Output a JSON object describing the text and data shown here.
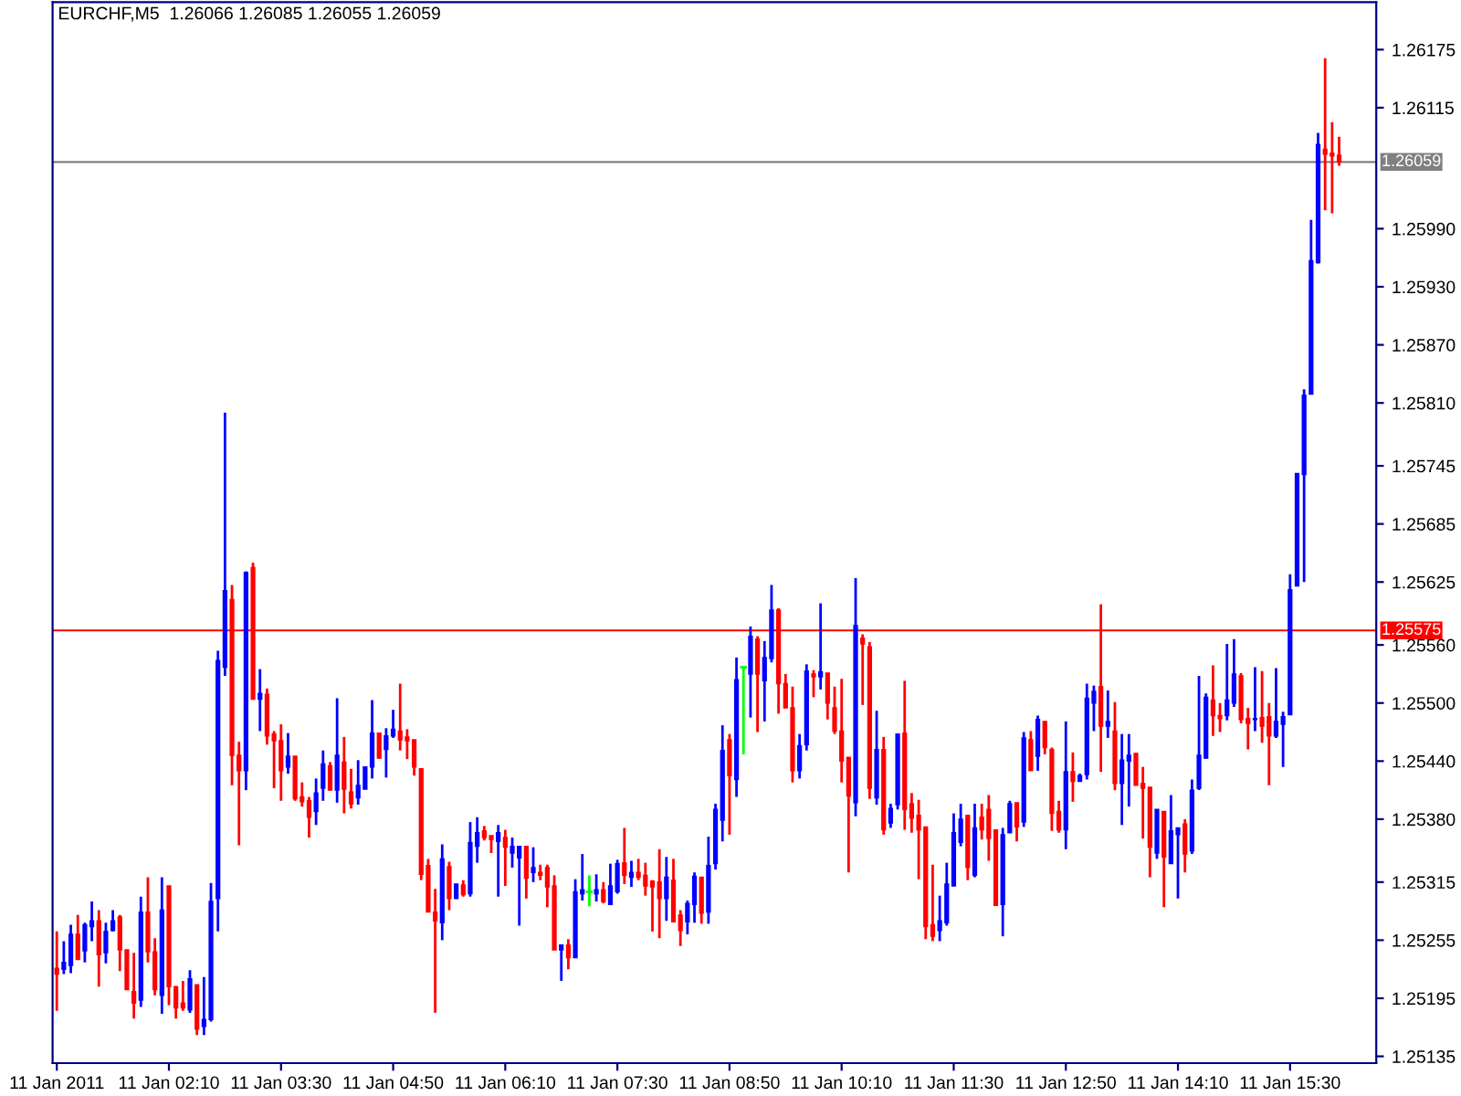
{
  "chart_data": {
    "type": "candlestick",
    "title": "EURCHF,M5  1.26066 1.26085 1.26055 1.26059",
    "categories": [
      "11 Jan 2011",
      null,
      null,
      null,
      null,
      null,
      null,
      null,
      null,
      null,
      null,
      null,
      null,
      null,
      null,
      null,
      "11 Jan 02:10",
      null,
      null,
      null,
      null,
      null,
      null,
      null,
      null,
      null,
      null,
      null,
      null,
      null,
      null,
      null,
      "11 Jan 03:30",
      null,
      null,
      null,
      null,
      null,
      null,
      null,
      null,
      null,
      null,
      null,
      null,
      null,
      null,
      null,
      "11 Jan 04:50",
      null,
      null,
      null,
      null,
      null,
      null,
      null,
      null,
      null,
      null,
      null,
      null,
      null,
      null,
      null,
      "11 Jan 06:10",
      null,
      null,
      null,
      null,
      null,
      null,
      null,
      null,
      null,
      null,
      null,
      null,
      null,
      null,
      null,
      "11 Jan 07:30",
      null,
      null,
      null,
      null,
      null,
      null,
      null,
      null,
      null,
      null,
      null,
      null,
      null,
      null,
      null,
      "11 Jan 08:50",
      null,
      null,
      null,
      null,
      null,
      null,
      null,
      null,
      null,
      null,
      null,
      null,
      null,
      null,
      null,
      "11 Jan 10:10",
      null,
      null,
      null,
      null,
      null,
      null,
      null,
      null,
      null,
      null,
      null,
      null,
      null,
      null,
      null,
      "11 Jan 11:30",
      null,
      null,
      null,
      null,
      null,
      null,
      null,
      null,
      null,
      null,
      null,
      null,
      null,
      null,
      null,
      "11 Jan 12:50",
      null,
      null,
      null,
      null,
      null,
      null,
      null,
      null,
      null,
      null,
      null,
      null,
      null,
      null,
      null,
      "11 Jan 14:10",
      null,
      null,
      null,
      null,
      null,
      null,
      null,
      null,
      null,
      null,
      null,
      null,
      null,
      null,
      null,
      "11 Jan 15:30",
      null,
      null,
      null,
      null,
      null,
      null,
      null
    ],
    "ohlc": [
      [
        1.25226,
        1.25264,
        1.25182,
        1.2522
      ],
      [
        1.25225,
        1.25254,
        1.2522,
        1.25232
      ],
      [
        1.25229,
        1.25271,
        1.25221,
        1.25261
      ],
      [
        1.25261,
        1.25281,
        1.25235,
        1.25235
      ],
      [
        1.25244,
        1.25273,
        1.25232,
        1.25271
      ],
      [
        1.25269,
        1.25295,
        1.25254,
        1.25275
      ],
      [
        1.25275,
        1.25286,
        1.25207,
        1.2524
      ],
      [
        1.25242,
        1.25273,
        1.25231,
        1.25264
      ],
      [
        1.25265,
        1.25286,
        1.25264,
        1.25275
      ],
      [
        1.25279,
        1.25281,
        1.25223,
        1.25245
      ],
      [
        1.25245,
        1.25245,
        1.25204,
        1.25204
      ],
      [
        1.25202,
        1.25242,
        1.25174,
        1.2519
      ],
      [
        1.25193,
        1.253,
        1.25186,
        1.25284
      ],
      [
        1.25284,
        1.2532,
        1.25232,
        1.25243
      ],
      [
        1.25243,
        1.25257,
        1.25198,
        1.25204
      ],
      [
        1.25198,
        1.2532,
        1.25179,
        1.25286
      ],
      [
        1.25311,
        1.25311,
        1.25188,
        1.25207
      ],
      [
        1.25207,
        1.25207,
        1.25174,
        1.25185
      ],
      [
        1.2519,
        1.25213,
        1.25182,
        1.25185
      ],
      [
        1.25183,
        1.25224,
        1.2518,
        1.25215
      ],
      [
        1.25209,
        1.25209,
        1.25157,
        1.25163
      ],
      [
        1.25166,
        1.25217,
        1.25157,
        1.25173
      ],
      [
        1.25173,
        1.25314,
        1.25171,
        1.25295
      ],
      [
        1.25298,
        1.25554,
        1.25264,
        1.25544
      ],
      [
        1.25537,
        1.258,
        1.25528,
        1.25616
      ],
      [
        1.25607,
        1.25622,
        1.25415,
        1.25446
      ],
      [
        1.25446,
        1.2546,
        1.25353,
        1.2543
      ],
      [
        1.2543,
        1.25636,
        1.2541,
        1.25635
      ],
      [
        1.2564,
        1.25645,
        1.25504,
        1.25504
      ],
      [
        1.25504,
        1.25535,
        1.25471,
        1.2551
      ],
      [
        1.25509,
        1.25515,
        1.25457,
        1.25466
      ],
      [
        1.25468,
        1.25471,
        1.25412,
        1.25461
      ],
      [
        1.25461,
        1.25478,
        1.25399,
        1.2543
      ],
      [
        1.25434,
        1.25469,
        1.25427,
        1.25445
      ],
      [
        1.25445,
        1.25445,
        1.25399,
        1.25401
      ],
      [
        1.25403,
        1.25418,
        1.25393,
        1.25398
      ],
      [
        1.25399,
        1.25403,
        1.25361,
        1.25382
      ],
      [
        1.25388,
        1.25422,
        1.25374,
        1.25407
      ],
      [
        1.25412,
        1.25451,
        1.25399,
        1.25437
      ],
      [
        1.25435,
        1.25439,
        1.2541,
        1.2541
      ],
      [
        1.2541,
        1.25505,
        1.25397,
        1.25446
      ],
      [
        1.25439,
        1.25465,
        1.25386,
        1.25411
      ],
      [
        1.25408,
        1.25432,
        1.25391,
        1.25396
      ],
      [
        1.25402,
        1.25441,
        1.25395,
        1.25415
      ],
      [
        1.25411,
        1.25434,
        1.25411,
        1.25434
      ],
      [
        1.25434,
        1.25503,
        1.25422,
        1.25469
      ],
      [
        1.25469,
        1.25469,
        1.25443,
        1.25443
      ],
      [
        1.25452,
        1.25474,
        1.25423,
        1.25466
      ],
      [
        1.25466,
        1.25493,
        1.25464,
        1.25473
      ],
      [
        1.25471,
        1.2552,
        1.25451,
        1.25462
      ],
      [
        1.25465,
        1.25473,
        1.25442,
        1.25461
      ],
      [
        1.25462,
        1.25462,
        1.25425,
        1.25434
      ],
      [
        1.25432,
        1.25432,
        1.25317,
        1.25323
      ],
      [
        1.25332,
        1.25339,
        1.25284,
        1.25284
      ],
      [
        1.25284,
        1.25308,
        1.2518,
        1.25275
      ],
      [
        1.25273,
        1.25354,
        1.25255,
        1.25339
      ],
      [
        1.25331,
        1.25336,
        1.25286,
        1.25298
      ],
      [
        1.25298,
        1.25313,
        1.25298,
        1.25313
      ],
      [
        1.25312,
        1.25317,
        1.253,
        1.25302
      ],
      [
        1.25303,
        1.25377,
        1.253,
        1.25356
      ],
      [
        1.25352,
        1.25382,
        1.25335,
        1.25366
      ],
      [
        1.25368,
        1.25373,
        1.25358,
        1.25361
      ],
      [
        1.25363,
        1.25363,
        1.25345,
        1.25359
      ],
      [
        1.25357,
        1.25374,
        1.253,
        1.25366
      ],
      [
        1.25361,
        1.25369,
        1.25311,
        1.25351
      ],
      [
        1.25345,
        1.25361,
        1.2533,
        1.25352
      ],
      [
        1.2534,
        1.25352,
        1.2527,
        1.25352
      ],
      [
        1.25352,
        1.25352,
        1.25298,
        1.25319
      ],
      [
        1.25325,
        1.25351,
        1.25315,
        1.2533
      ],
      [
        1.25325,
        1.25333,
        1.25317,
        1.25322
      ],
      [
        1.2533,
        1.25333,
        1.25289,
        1.2531
      ],
      [
        1.25311,
        1.25322,
        1.25245,
        1.25245
      ],
      [
        1.25245,
        1.2525,
        1.25213,
        1.2525
      ],
      [
        1.2525,
        1.25256,
        1.25225,
        1.25237
      ],
      [
        1.25237,
        1.25318,
        1.25237,
        1.25305
      ],
      [
        1.25303,
        1.25344,
        1.25296,
        1.25307
      ],
      [
        1.25305,
        1.25322,
        1.2529,
        1.25305
      ],
      [
        1.25303,
        1.25323,
        1.25295,
        1.25307
      ],
      [
        1.25307,
        1.25315,
        1.25293,
        1.25295
      ],
      [
        1.25292,
        1.25334,
        1.25292,
        1.25311
      ],
      [
        1.25305,
        1.25338,
        1.25303,
        1.25334
      ],
      [
        1.25335,
        1.25371,
        1.25313,
        1.25322
      ],
      [
        1.2532,
        1.25337,
        1.2531,
        1.25325
      ],
      [
        1.25325,
        1.25339,
        1.25317,
        1.2532
      ],
      [
        1.25322,
        1.25335,
        1.25301,
        1.25311
      ],
      [
        1.25316,
        1.25317,
        1.25264,
        1.2531
      ],
      [
        1.25315,
        1.25349,
        1.25257,
        1.25298
      ],
      [
        1.25298,
        1.25341,
        1.25275,
        1.2532
      ],
      [
        1.25317,
        1.25339,
        1.25274,
        1.25274
      ],
      [
        1.25281,
        1.25286,
        1.25249,
        1.25265
      ],
      [
        1.25274,
        1.25296,
        1.25261,
        1.25293
      ],
      [
        1.25292,
        1.25325,
        1.25273,
        1.25321
      ],
      [
        1.2532,
        1.2532,
        1.25272,
        1.25283
      ],
      [
        1.25284,
        1.25362,
        1.25272,
        1.25332
      ],
      [
        1.25334,
        1.25396,
        1.25328,
        1.2539
      ],
      [
        1.25379,
        1.25477,
        1.25357,
        1.25451
      ],
      [
        1.25462,
        1.25468,
        1.25364,
        1.25425
      ],
      [
        1.25421,
        1.25547,
        1.25403,
        1.25524
      ],
      [
        1.25537,
        1.25537,
        1.25447,
        1.25537
      ],
      [
        1.2553,
        1.25579,
        1.25485,
        1.25569
      ],
      [
        1.25566,
        1.25569,
        1.2547,
        1.2553
      ],
      [
        1.25523,
        1.25564,
        1.25481,
        1.25547
      ],
      [
        1.25546,
        1.25622,
        1.25542,
        1.25596
      ],
      [
        1.25596,
        1.25598,
        1.25489,
        1.2552
      ],
      [
        1.2552,
        1.2553,
        1.25495,
        1.25495
      ],
      [
        1.25495,
        1.25517,
        1.25418,
        1.2543
      ],
      [
        1.2543,
        1.25468,
        1.25422,
        1.25456
      ],
      [
        1.25457,
        1.2554,
        1.25451,
        1.25533
      ],
      [
        1.2553,
        1.25534,
        1.25506,
        1.25527
      ],
      [
        1.25527,
        1.25603,
        1.25514,
        1.25532
      ],
      [
        1.25531,
        1.25531,
        1.25483,
        1.255
      ],
      [
        1.25495,
        1.25517,
        1.25468,
        1.25471
      ],
      [
        1.25471,
        1.25525,
        1.25418,
        1.2544
      ],
      [
        1.25444,
        1.25444,
        1.25325,
        1.25404
      ],
      [
        1.25397,
        1.25629,
        1.25383,
        1.2558
      ],
      [
        1.25567,
        1.25571,
        1.25498,
        1.25561
      ],
      [
        1.25558,
        1.25563,
        1.25401,
        1.25412
      ],
      [
        1.25402,
        1.25492,
        1.25395,
        1.25452
      ],
      [
        1.25452,
        1.25465,
        1.25364,
        1.25369
      ],
      [
        1.25376,
        1.25396,
        1.25371,
        1.25391
      ],
      [
        1.25395,
        1.25468,
        1.2539,
        1.25468
      ],
      [
        1.25469,
        1.25523,
        1.25369,
        1.2539
      ],
      [
        1.25396,
        1.25407,
        1.25366,
        1.25381
      ],
      [
        1.25384,
        1.254,
        1.25318,
        1.25369
      ],
      [
        1.25372,
        1.25372,
        1.25256,
        1.25269
      ],
      [
        1.25271,
        1.25333,
        1.25254,
        1.25259
      ],
      [
        1.25265,
        1.25301,
        1.25254,
        1.25275
      ],
      [
        1.25273,
        1.25335,
        1.2527,
        1.25313
      ],
      [
        1.25311,
        1.25386,
        1.25311,
        1.25366
      ],
      [
        1.25356,
        1.25396,
        1.25352,
        1.2538
      ],
      [
        1.25384,
        1.25384,
        1.25317,
        1.2533
      ],
      [
        1.25322,
        1.25396,
        1.2532,
        1.25371
      ],
      [
        1.25382,
        1.25396,
        1.25359,
        1.25369
      ],
      [
        1.2539,
        1.25405,
        1.25337,
        1.2536
      ],
      [
        1.25369,
        1.25369,
        1.25291,
        1.25291
      ],
      [
        1.25292,
        1.25371,
        1.25259,
        1.25364
      ],
      [
        1.25366,
        1.25399,
        1.25366,
        1.25396
      ],
      [
        1.25397,
        1.25397,
        1.25357,
        1.25372
      ],
      [
        1.25377,
        1.2547,
        1.25372,
        1.25464
      ],
      [
        1.25462,
        1.25471,
        1.2543,
        1.2543
      ],
      [
        1.25445,
        1.25487,
        1.2543,
        1.25483
      ],
      [
        1.25481,
        1.25481,
        1.25447,
        1.25454
      ],
      [
        1.25452,
        1.25454,
        1.25368,
        1.25386
      ],
      [
        1.25388,
        1.25399,
        1.25366,
        1.25369
      ],
      [
        1.25369,
        1.25481,
        1.25349,
        1.25429
      ],
      [
        1.25429,
        1.25449,
        1.25398,
        1.25419
      ],
      [
        1.25419,
        1.25427,
        1.25419,
        1.25425
      ],
      [
        1.25426,
        1.2552,
        1.25421,
        1.25505
      ],
      [
        1.255,
        1.25518,
        1.25471,
        1.25512
      ],
      [
        1.25517,
        1.25602,
        1.25429,
        1.25476
      ],
      [
        1.25476,
        1.25513,
        1.25464,
        1.25481
      ],
      [
        1.25471,
        1.25501,
        1.2541,
        1.25417
      ],
      [
        1.25417,
        1.25468,
        1.25374,
        1.25441
      ],
      [
        1.2544,
        1.25468,
        1.25393,
        1.25446
      ],
      [
        1.25448,
        1.25448,
        1.25415,
        1.25415
      ],
      [
        1.25417,
        1.25434,
        1.2536,
        1.25412
      ],
      [
        1.25413,
        1.25413,
        1.2532,
        1.25351
      ],
      [
        1.25345,
        1.2539,
        1.25339,
        1.2539
      ],
      [
        1.25388,
        1.25388,
        1.25289,
        1.25341
      ],
      [
        1.25334,
        1.25405,
        1.25334,
        1.25368
      ],
      [
        1.25364,
        1.25371,
        1.25298,
        1.25371
      ],
      [
        1.25375,
        1.2538,
        1.25325,
        1.25344
      ],
      [
        1.25347,
        1.25421,
        1.25344,
        1.2541
      ],
      [
        1.25412,
        1.25528,
        1.2541,
        1.25446
      ],
      [
        1.25443,
        1.2551,
        1.25443,
        1.25506
      ],
      [
        1.25503,
        1.25539,
        1.25466,
        1.25487
      ],
      [
        1.25487,
        1.255,
        1.2547,
        1.25484
      ],
      [
        1.25487,
        1.25561,
        1.25482,
        1.25503
      ],
      [
        1.255,
        1.25566,
        1.25496,
        1.2553
      ],
      [
        1.25528,
        1.25531,
        1.25479,
        1.25483
      ],
      [
        1.25484,
        1.25495,
        1.25452,
        1.25479
      ],
      [
        1.25483,
        1.25537,
        1.25471,
        1.25484
      ],
      [
        1.25485,
        1.25533,
        1.25459,
        1.25476
      ],
      [
        1.25486,
        1.255,
        1.25415,
        1.25466
      ],
      [
        1.25466,
        1.25536,
        1.25464,
        1.25481
      ],
      [
        1.25478,
        1.25491,
        1.25434,
        1.25486
      ],
      [
        1.25488,
        1.25633,
        1.25488,
        1.25617
      ],
      [
        1.25621,
        1.25737,
        1.25621,
        1.25737
      ],
      [
        1.25736,
        1.25824,
        1.25625,
        1.25818
      ],
      [
        1.25819,
        1.25999,
        1.25819,
        1.25957
      ],
      [
        1.25955,
        1.26089,
        1.25954,
        1.26077
      ],
      [
        1.26072,
        1.26166,
        1.26009,
        1.26067
      ],
      [
        1.26068,
        1.261,
        1.26006,
        1.26065
      ],
      [
        1.26066,
        1.26085,
        1.26055,
        1.26059
      ]
    ],
    "colors": [
      "#ff0000",
      "#0000ff",
      "#0000ff",
      "#ff0000",
      "#0000ff",
      "#0000ff",
      "#ff0000",
      "#0000ff",
      "#0000ff",
      "#ff0000",
      "#ff0000",
      "#ff0000",
      "#0000ff",
      "#ff0000",
      "#ff0000",
      "#0000ff",
      "#ff0000",
      "#ff0000",
      "#ff0000",
      "#0000ff",
      "#ff0000",
      "#0000ff",
      "#0000ff",
      "#0000ff",
      "#0000ff",
      "#ff0000",
      "#ff0000",
      "#0000ff",
      "#ff0000",
      "#0000ff",
      "#ff0000",
      "#ff0000",
      "#ff0000",
      "#0000ff",
      "#ff0000",
      "#ff0000",
      "#ff0000",
      "#0000ff",
      "#0000ff",
      "#ff0000",
      "#0000ff",
      "#ff0000",
      "#ff0000",
      "#0000ff",
      "#0000ff",
      "#0000ff",
      "#ff0000",
      "#0000ff",
      "#0000ff",
      "#ff0000",
      "#ff0000",
      "#ff0000",
      "#ff0000",
      "#ff0000",
      "#ff0000",
      "#0000ff",
      "#ff0000",
      "#0000ff",
      "#ff0000",
      "#0000ff",
      "#0000ff",
      "#ff0000",
      "#ff0000",
      "#0000ff",
      "#ff0000",
      "#0000ff",
      "#0000ff",
      "#ff0000",
      "#0000ff",
      "#ff0000",
      "#ff0000",
      "#ff0000",
      "#0000ff",
      "#ff0000",
      "#0000ff",
      "#0000ff",
      "#00ff00",
      "#0000ff",
      "#ff0000",
      "#0000ff",
      "#0000ff",
      "#ff0000",
      "#0000ff",
      "#ff0000",
      "#ff0000",
      "#ff0000",
      "#ff0000",
      "#0000ff",
      "#ff0000",
      "#ff0000",
      "#0000ff",
      "#0000ff",
      "#ff0000",
      "#0000ff",
      "#0000ff",
      "#0000ff",
      "#ff0000",
      "#0000ff",
      "#00ff00",
      "#0000ff",
      "#ff0000",
      "#0000ff",
      "#0000ff",
      "#ff0000",
      "#ff0000",
      "#ff0000",
      "#0000ff",
      "#0000ff",
      "#ff0000",
      "#0000ff",
      "#ff0000",
      "#ff0000",
      "#ff0000",
      "#ff0000",
      "#0000ff",
      "#ff0000",
      "#ff0000",
      "#0000ff",
      "#ff0000",
      "#0000ff",
      "#0000ff",
      "#ff0000",
      "#ff0000",
      "#ff0000",
      "#ff0000",
      "#ff0000",
      "#0000ff",
      "#0000ff",
      "#0000ff",
      "#0000ff",
      "#ff0000",
      "#0000ff",
      "#ff0000",
      "#ff0000",
      "#ff0000",
      "#0000ff",
      "#0000ff",
      "#ff0000",
      "#0000ff",
      "#ff0000",
      "#0000ff",
      "#ff0000",
      "#ff0000",
      "#ff0000",
      "#0000ff",
      "#ff0000",
      "#0000ff",
      "#0000ff",
      "#0000ff",
      "#ff0000",
      "#0000ff",
      "#ff0000",
      "#0000ff",
      "#0000ff",
      "#ff0000",
      "#ff0000",
      "#ff0000",
      "#0000ff",
      "#ff0000",
      "#0000ff",
      "#0000ff",
      "#ff0000",
      "#0000ff",
      "#0000ff",
      "#0000ff",
      "#ff0000",
      "#ff0000",
      "#0000ff",
      "#0000ff",
      "#ff0000",
      "#ff0000",
      "#0000ff",
      "#ff0000",
      "#ff0000",
      "#0000ff",
      "#0000ff",
      "#0000ff",
      "#0000ff",
      "#0000ff",
      "#0000ff",
      "#0000ff",
      "#ff0000",
      "#ff0000",
      "#ff0000"
    ],
    "ylim": [
      1.25128,
      1.26224
    ],
    "yticks": [
      1.26175,
      1.26115,
      {
        "value": 1.2599,
        "label": "1.25990"
      },
      {
        "value": 1.2593,
        "label": "1.25930"
      },
      {
        "value": 1.2587,
        "label": "1.25870"
      },
      {
        "value": 1.2581,
        "label": "1.25810"
      },
      1.25745,
      1.25685,
      1.25625,
      {
        "value": 1.2556,
        "label": "1.25560"
      },
      {
        "value": 1.255,
        "label": "1.25500"
      },
      {
        "value": 1.2544,
        "label": "1.25440"
      },
      {
        "value": 1.2538,
        "label": "1.25380"
      },
      1.25315,
      1.25255,
      1.25195,
      1.25135
    ],
    "ref_lines": [
      {
        "axis": "y",
        "value": 1.26059,
        "label": "1.26059",
        "color": "#808080"
      },
      {
        "axis": "y",
        "value": 1.25575,
        "label": "1.25575",
        "color": "#ff0000"
      }
    ]
  }
}
